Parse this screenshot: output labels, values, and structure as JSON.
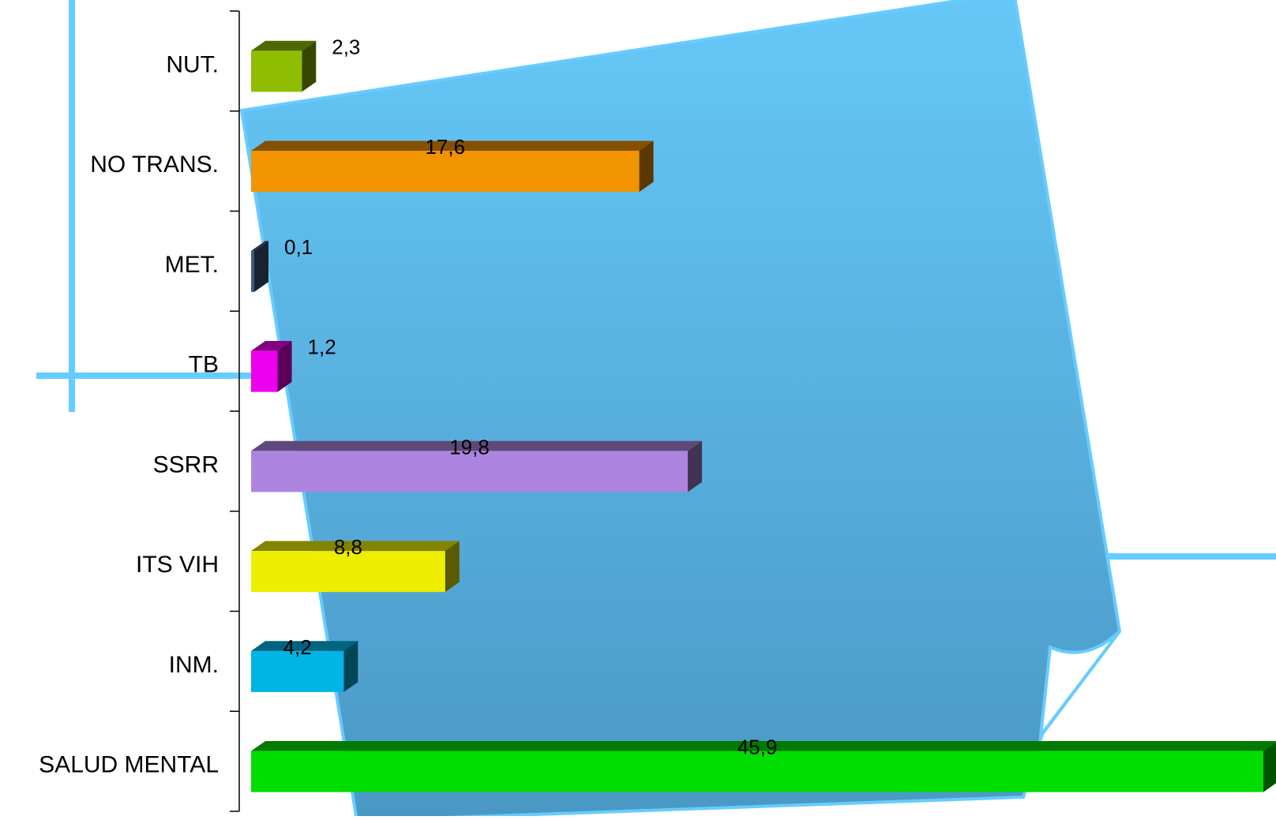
{
  "chart_data": {
    "type": "bar",
    "orientation": "horizontal",
    "categories": [
      "NUT.",
      "NO TRANS.",
      "MET.",
      "TB",
      "SSRR",
      "ITS VIH",
      "INM.",
      "SALUD MENTAL"
    ],
    "values": [
      2.3,
      17.6,
      0.1,
      1.2,
      19.8,
      8.8,
      4.2,
      45.9
    ],
    "value_labels": [
      "2,3",
      "17,6",
      "0,1",
      "1,2",
      "19,8",
      "8,8",
      "4,2",
      "45,9"
    ],
    "bar_colors": [
      "#8fbd00",
      "#f29400",
      "#3e5a80",
      "#ee00ee",
      "#ad85e0",
      "#eeee00",
      "#00b4e6",
      "#00dd00"
    ],
    "title": "",
    "xlabel": "",
    "ylabel": "",
    "xlim": [
      0,
      45.9
    ],
    "grid": false,
    "legend": "none"
  },
  "decoration": {
    "background_shape": "curled-paper-note",
    "note_color": "#5bbcf0",
    "note_outline": "#66ccff",
    "line_color": "#66ccff"
  }
}
